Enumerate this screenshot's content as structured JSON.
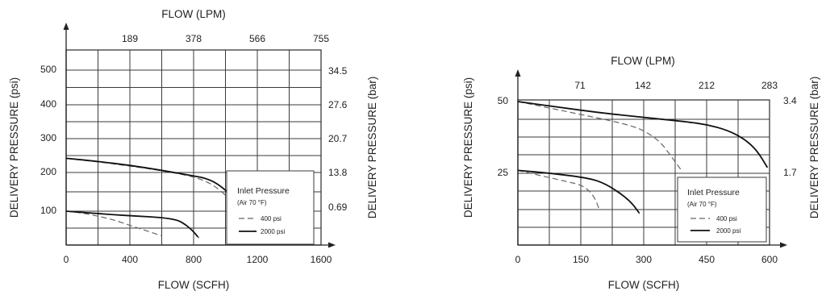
{
  "chart_data": [
    {
      "type": "line",
      "title": "",
      "top_axis": {
        "label": "FLOW (LPM)",
        "ticks": [
          "189",
          "378",
          "566",
          "755"
        ]
      },
      "xlabel": "FLOW (SCFH)",
      "xticks": [
        "0",
        "400",
        "800",
        "1200",
        "1600"
      ],
      "xlim": [
        0,
        1600
      ],
      "ylabel": "DELIVERY PRESSURE (psi)",
      "yticks": [
        "100",
        "200",
        "300",
        "400",
        "500"
      ],
      "ylim": [
        0,
        550
      ],
      "right_axis": {
        "label": "DELIVERY PRESSURE (bar)",
        "ticks": [
          "34.5",
          "27.6",
          "20.7",
          "13.8",
          "0.69"
        ]
      },
      "grid": true,
      "legend": {
        "title": "Inlet Pressure",
        "subtitle": "(Air 70 °F)",
        "entries": [
          "400 psi",
          "2000 psi"
        ],
        "placement": "bottom-right"
      },
      "series": [
        {
          "name": "400 psi",
          "style": "dashed",
          "x": [
            0,
            200,
            400,
            600,
            800,
            900,
            950,
            1000
          ],
          "y": [
            250,
            240,
            228,
            215,
            198,
            180,
            165,
            145
          ]
        },
        {
          "name": "2000 psi",
          "style": "solid",
          "x": [
            0,
            200,
            400,
            600,
            800,
            880,
            950,
            1020
          ],
          "y": [
            250,
            241,
            230,
            216,
            200,
            193,
            178,
            152
          ]
        },
        {
          "name": "400 psi",
          "style": "dashed",
          "x": [
            0,
            100,
            200,
            300,
            400,
            500,
            600
          ],
          "y": [
            100,
            95,
            86,
            75,
            60,
            45,
            30
          ]
        },
        {
          "name": "2000 psi",
          "style": "solid",
          "x": [
            0,
            150,
            300,
            450,
            600,
            700,
            750,
            800,
            830
          ],
          "y": [
            100,
            95,
            90,
            86,
            82,
            75,
            62,
            42,
            25
          ]
        }
      ]
    },
    {
      "type": "line",
      "title": "",
      "top_axis": {
        "label": "FLOW (LPM)",
        "ticks": [
          "71",
          "142",
          "212",
          "283"
        ]
      },
      "xlabel": "FLOW (SCFH)",
      "xticks": [
        "0",
        "150",
        "300",
        "450",
        "600"
      ],
      "xlim": [
        0,
        600
      ],
      "ylabel": "DELIVERY PRESSURE (psi)",
      "yticks": [
        "25",
        "50"
      ],
      "ylim": [
        0,
        50
      ],
      "right_axis": {
        "label": "DELIVERY PRESSURE (bar)",
        "ticks": [
          "3.4",
          "1.7"
        ]
      },
      "grid": true,
      "legend": {
        "title": "Inlet Pressure",
        "subtitle": "(Air 70 °F)",
        "entries": [
          "400 psi",
          "2000 psi"
        ],
        "placement": "bottom-right"
      },
      "series": [
        {
          "name": "400 psi",
          "style": "dashed",
          "x": [
            0,
            100,
            200,
            260,
            300,
            340,
            370,
            390
          ],
          "y": [
            50,
            47,
            44,
            42,
            40,
            36,
            30,
            26
          ]
        },
        {
          "name": "2000 psi",
          "style": "solid",
          "x": [
            0,
            100,
            200,
            300,
            400,
            450,
            500,
            540,
            570,
            595
          ],
          "y": [
            50,
            48,
            46,
            44.5,
            43,
            42,
            40,
            37,
            33,
            27
          ]
        },
        {
          "name": "400 psi",
          "style": "dashed",
          "x": [
            0,
            60,
            120,
            150,
            170,
            185,
            195
          ],
          "y": [
            26,
            24,
            22,
            21,
            19,
            16,
            12
          ]
        },
        {
          "name": "2000 psi",
          "style": "solid",
          "x": [
            0,
            80,
            160,
            200,
            240,
            270,
            290
          ],
          "y": [
            26,
            25,
            23.5,
            22,
            18.5,
            15,
            11
          ]
        }
      ]
    }
  ]
}
